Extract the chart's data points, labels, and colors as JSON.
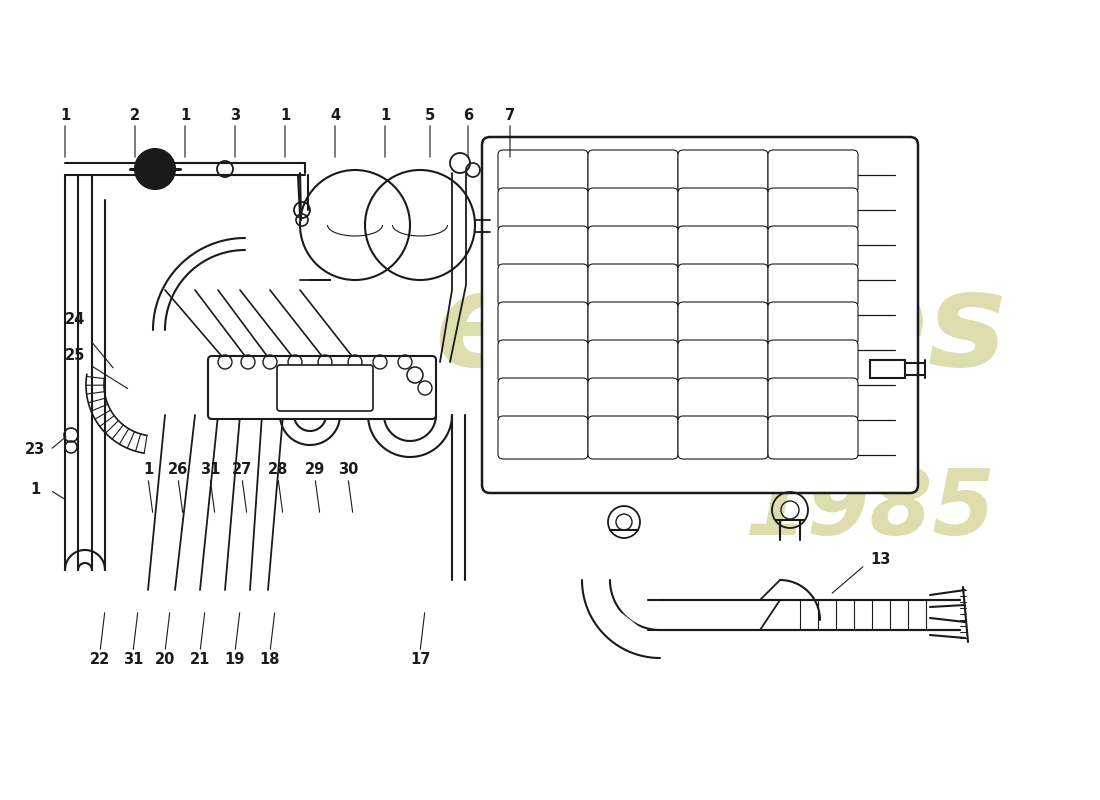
{
  "bg": "#ffffff",
  "lc": "#1a1a1a",
  "wm_color": "#d8d8a0",
  "figsize": [
    11.0,
    8.0
  ],
  "dpi": 100
}
